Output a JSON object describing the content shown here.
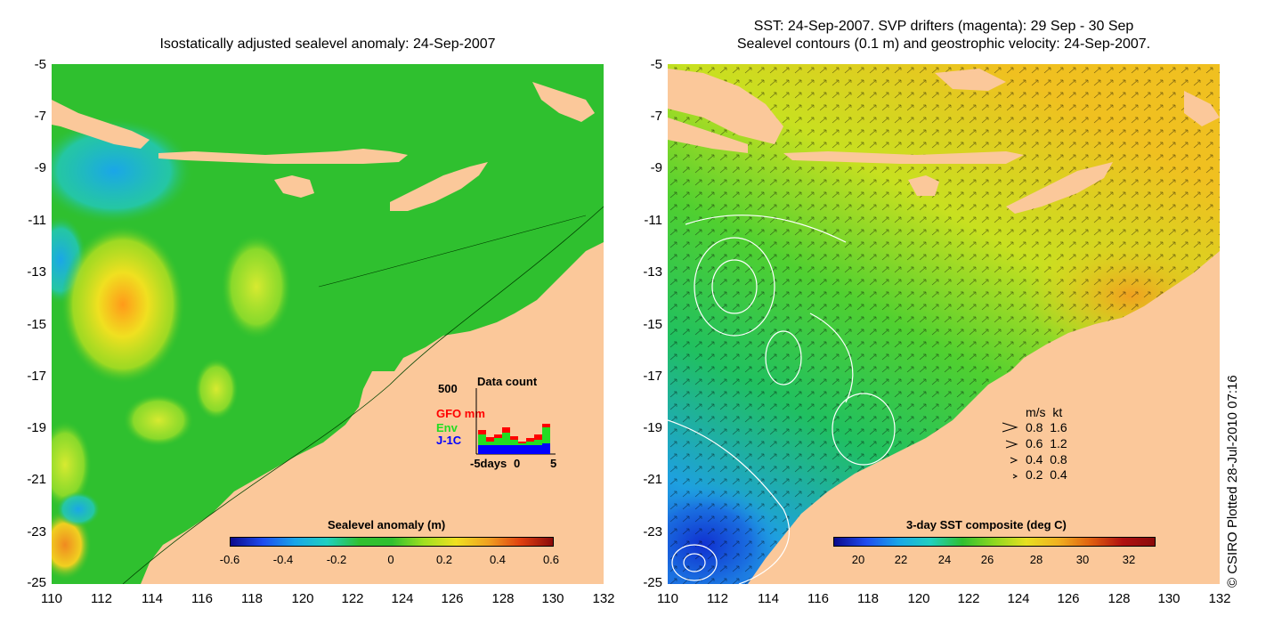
{
  "left_panel": {
    "title": "Isostatically adjusted sealevel anomaly: 24-Sep-2007",
    "colorbar_title": "Sealevel anomaly (m)",
    "colorbar_ticks": [
      "-0.6",
      "-0.4",
      "-0.2",
      "0",
      "0.2",
      "0.4",
      "0.6"
    ],
    "inset": {
      "title": "Data count",
      "ymax_label": "500",
      "series_labels": [
        "GFO mm",
        "Env",
        "J-1C"
      ],
      "series_colors": [
        "#ff0000",
        "#22dd22",
        "#0000ff"
      ],
      "x_labels": [
        "-5days",
        "0",
        "5"
      ]
    }
  },
  "right_panel": {
    "title_line1": "SST: 24-Sep-2007. SVP drifters (magenta): 29 Sep - 30 Sep",
    "title_line2": "Sealevel contours (0.1 m) and geostrophic velocity: 24-Sep-2007.",
    "colorbar_title": "3-day SST composite (deg C)",
    "colorbar_ticks": [
      "20",
      "22",
      "24",
      "26",
      "28",
      "30",
      "32"
    ],
    "velocity_legend": {
      "header": "m/s  kt",
      "rows": [
        "0.8  1.6",
        "0.6  1.2",
        "0.4  0.8",
        "0.2  0.4"
      ]
    }
  },
  "axes": {
    "y_ticks": [
      "-5",
      "-7",
      "-9",
      "-11",
      "-13",
      "-15",
      "-17",
      "-19",
      "-21",
      "-23",
      "-25"
    ],
    "x_ticks": [
      "110",
      "112",
      "114",
      "116",
      "118",
      "120",
      "122",
      "124",
      "126",
      "128",
      "130",
      "132"
    ]
  },
  "credit": "© CSIRO Plotted 28-Jul-2010 07:16",
  "colors": {
    "land": "#fbc89a",
    "ocean_green": "#2fc02f",
    "contour": "#ffffff",
    "arrows": "#000000"
  }
}
